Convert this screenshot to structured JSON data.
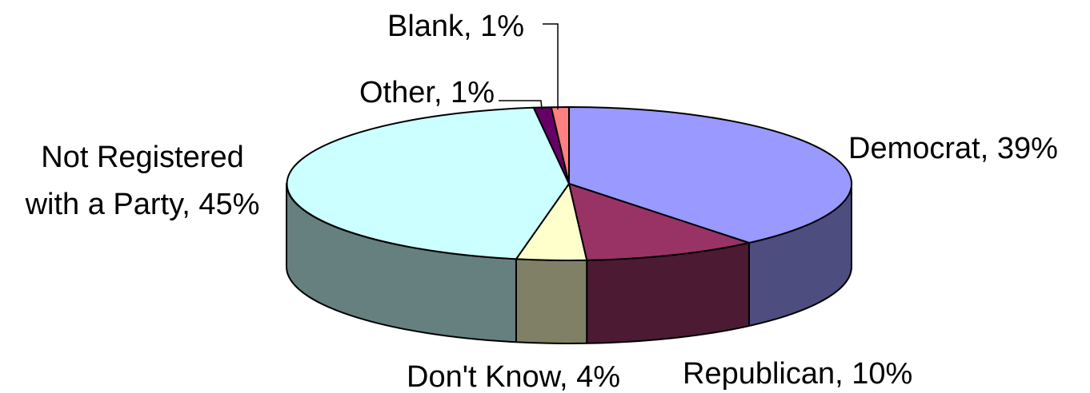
{
  "chart_data": {
    "type": "pie",
    "style": "3d-perspective",
    "start": "12 o'clock",
    "direction": "clockwise",
    "slices": [
      {
        "label": "Democrat",
        "value": 39,
        "value_label": "39%",
        "top_color": "#9999ff",
        "side_color": "#4d4d80"
      },
      {
        "label": "Republican",
        "value": 10,
        "value_label": "10%",
        "top_color": "#993366",
        "side_color": "#4d1a33"
      },
      {
        "label": "Don't Know",
        "value": 4,
        "value_label": "4%",
        "top_color": "#ffffcc",
        "side_color": "#808066"
      },
      {
        "label": "Not Registered with a Party",
        "label_lines": [
          "Not Registered",
          "with a Party, 45%"
        ],
        "value": 45,
        "value_label": "45%",
        "top_color": "#ccffff",
        "side_color": "#668080"
      },
      {
        "label": "Other",
        "value": 1,
        "value_label": "1%",
        "top_color": "#660066",
        "side_color": "#330033"
      },
      {
        "label": "Blank",
        "value": 1,
        "value_label": "1%",
        "top_color": "#ff8080",
        "side_color": "#804040"
      }
    ],
    "labels": {
      "democrat": "Democrat, 39%",
      "republican": "Republican, 10%",
      "dont_know": "Don't Know, 4%",
      "not_registered_line1": "Not Registered",
      "not_registered_line2": "with a Party, 45%",
      "other": "Other, 1%",
      "blank": "Blank, 1%"
    },
    "leader_lines": [
      "Other",
      "Blank"
    ]
  }
}
